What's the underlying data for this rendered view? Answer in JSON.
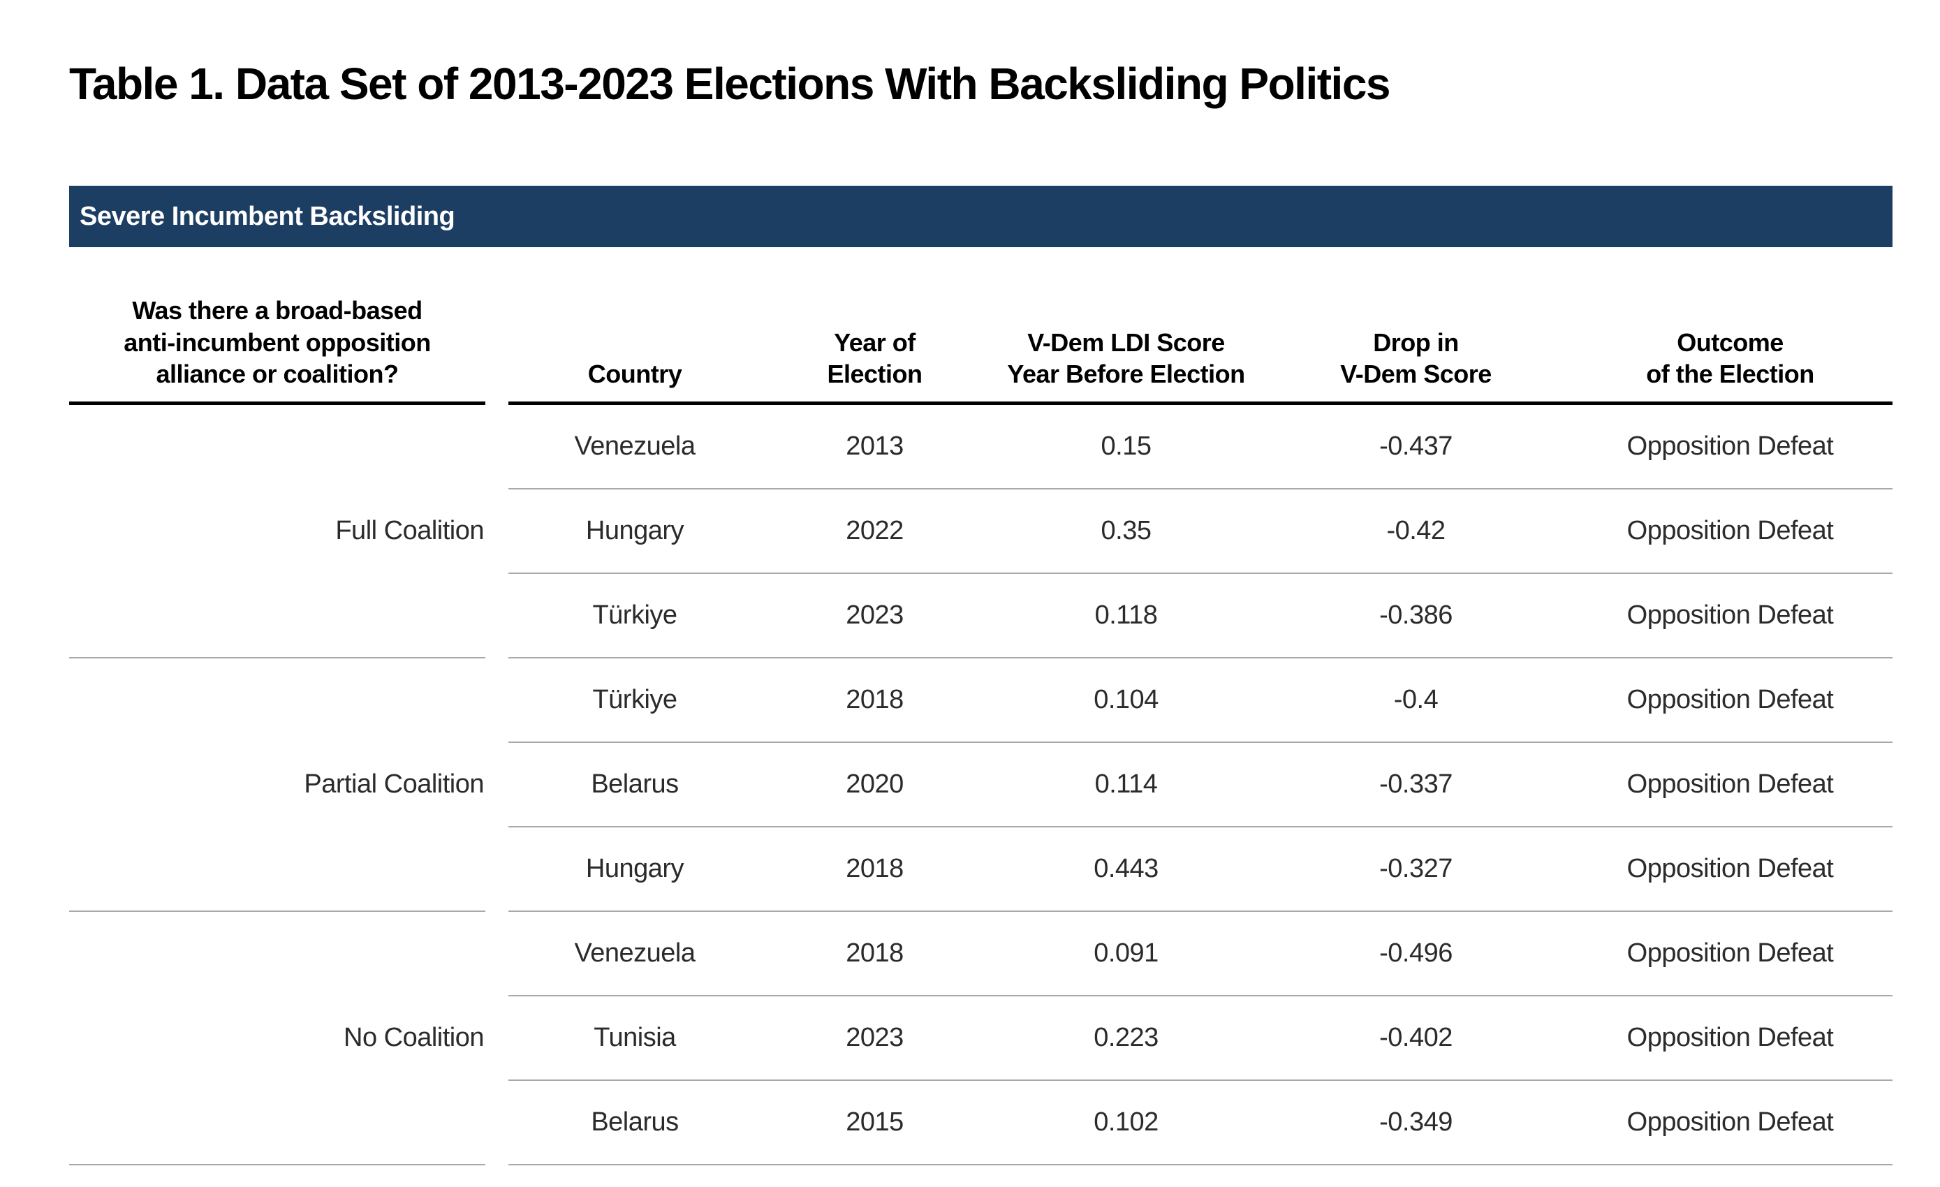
{
  "title": "Table 1. Data Set of 2013-2023 Elections With Backsliding Politics",
  "section_banner": {
    "label": "Severe Incumbent Backsliding"
  },
  "colors": {
    "banner_background": "#1d3e63",
    "banner_text": "#ffffff",
    "header_rule": "#000000",
    "row_rule": "#a9a9a9",
    "body_text": "#2b2b2b"
  },
  "table": {
    "headers": {
      "question": "Was there a broad-based\nanti-incumbent opposition\nalliance or coalition?",
      "country": "Country",
      "year": "Year of\nElection",
      "ldi": "V-Dem LDI Score\nYear Before Election",
      "drop": "Drop in\nV-Dem Score",
      "outcome": "Outcome\nof the Election"
    },
    "groups": [
      {
        "label": "Full Coalition",
        "rows": [
          {
            "country": "Venezuela",
            "year": "2013",
            "ldi": "0.15",
            "drop": "-0.437",
            "outcome": "Opposition Defeat"
          },
          {
            "country": "Hungary",
            "year": "2022",
            "ldi": "0.35",
            "drop": "-0.42",
            "outcome": "Opposition Defeat"
          },
          {
            "country": "Türkiye",
            "year": "2023",
            "ldi": "0.118",
            "drop": "-0.386",
            "outcome": "Opposition Defeat"
          }
        ]
      },
      {
        "label": "Partial Coalition",
        "rows": [
          {
            "country": "Türkiye",
            "year": "2018",
            "ldi": "0.104",
            "drop": "-0.4",
            "outcome": "Opposition Defeat"
          },
          {
            "country": "Belarus",
            "year": "2020",
            "ldi": "0.114",
            "drop": "-0.337",
            "outcome": "Opposition Defeat"
          },
          {
            "country": "Hungary",
            "year": "2018",
            "ldi": "0.443",
            "drop": "-0.327",
            "outcome": "Opposition Defeat"
          }
        ]
      },
      {
        "label": "No Coalition",
        "rows": [
          {
            "country": "Venezuela",
            "year": "2018",
            "ldi": "0.091",
            "drop": "-0.496",
            "outcome": "Opposition Defeat"
          },
          {
            "country": "Tunisia",
            "year": "2023",
            "ldi": "0.223",
            "drop": "-0.402",
            "outcome": "Opposition Defeat"
          },
          {
            "country": "Belarus",
            "year": "2015",
            "ldi": "0.102",
            "drop": "-0.349",
            "outcome": "Opposition Defeat"
          }
        ]
      }
    ]
  }
}
